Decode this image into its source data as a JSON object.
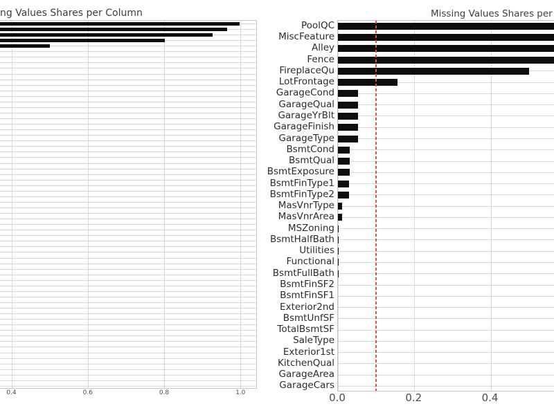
{
  "colors": {
    "background": "#ffffff",
    "bar": "#0d0d0d",
    "grid": "#d9d9d9",
    "spine": "#c6c6c6",
    "title_text": "#3d3d3d",
    "category_label_text": "#2b2b2b",
    "tick_label_text": "#4d4d4d",
    "threshold_line": "#dd4b4b"
  },
  "chart_data": [
    {
      "id": "left",
      "type": "bar",
      "orientation": "horizontal",
      "title": "Missing Values Shares per Column",
      "title_visible_part": "ng Values Shares per Column",
      "x_ticks": [
        0.4,
        0.6,
        0.8,
        1.0
      ],
      "x_tick_labels": [
        "0.4",
        "0.6",
        "0.8",
        "1.0"
      ],
      "values": [
        0.998,
        0.965,
        0.927,
        0.801,
        0.5
      ],
      "gridline_row_count": 66,
      "grid": true,
      "legend": false,
      "clipped_note": "figure cut off at left screen edge; y-axis labels off-screen, only top 5 bars visible"
    },
    {
      "id": "right",
      "type": "bar",
      "orientation": "horizontal",
      "title": "Missing Values Shares per Column",
      "title_visible_part": "Missing Values Shares per",
      "categories": [
        "PoolQC",
        "MiscFeature",
        "Alley",
        "Fence",
        "FireplaceQu",
        "LotFrontage",
        "GarageCond",
        "GarageQual",
        "GarageYrBlt",
        "GarageFinish",
        "GarageType",
        "BsmtCond",
        "BsmtQual",
        "BsmtExposure",
        "BsmtFinType1",
        "BsmtFinType2",
        "MasVnrType",
        "MasVnrArea",
        "MSZoning",
        "BsmtHalfBath",
        "Utilities",
        "Functional",
        "BsmtFullBath",
        "BsmtFinSF2",
        "BsmtFinSF1",
        "Exterior2nd",
        "BsmtUnfSF",
        "TotalBsmtSF",
        "SaleType",
        "Exterior1st",
        "KitchenQual",
        "GarageArea",
        "GarageCars"
      ],
      "values": [
        0.998,
        0.965,
        0.927,
        0.801,
        0.5,
        0.156,
        0.0535,
        0.0535,
        0.0535,
        0.0535,
        0.052,
        0.031,
        0.0302,
        0.0302,
        0.0288,
        0.0288,
        0.011,
        0.0103,
        0.0027,
        0.0014,
        0.0014,
        0.0014,
        0.0014,
        0.0007,
        0.0007,
        0.0007,
        0.0007,
        0.0007,
        0.0007,
        0.0007,
        0.0007,
        0.0007,
        0.0007
      ],
      "x_ticks": [
        0.0,
        0.2,
        0.4
      ],
      "x_tick_labels": [
        "0.0",
        "0.2",
        "0.4"
      ],
      "x_axis_visible_range": [
        0,
        0.57
      ],
      "threshold_line": {
        "value": 0.1,
        "style": "dashed",
        "color": "#dd4b4b"
      },
      "grid": true,
      "legend": false,
      "clipped_note": "figure cut off at right screen edge; bars above 0.57 run off-screen"
    }
  ]
}
